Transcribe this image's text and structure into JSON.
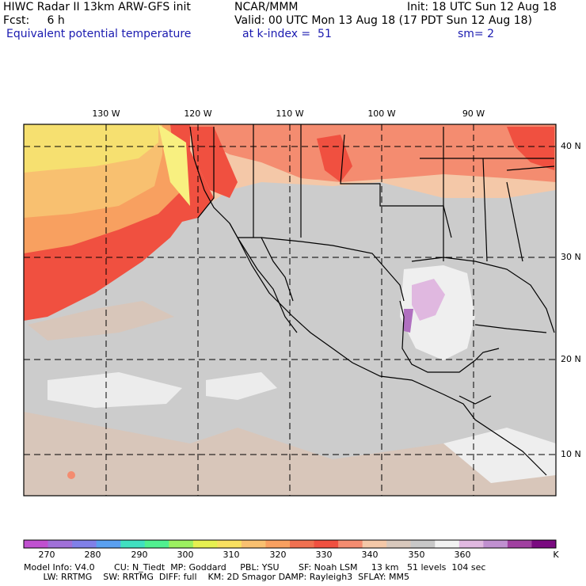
{
  "header": {
    "line1_left": "HIWC Radar II 13km ARW-GFS init",
    "line1_mid": "NCAR/MMM",
    "line1_right": "Init: 18 UTC Sun 12 Aug 18",
    "line2_left": "Fcst:     6 h",
    "line2_right": "Valid: 00 UTC Mon 13 Aug 18 (17 PDT Sun 12 Aug 18)",
    "line3_left": "Equivalent potential temperature",
    "line3_mid": "at k-index =  51",
    "line3_right": "sm= 2"
  },
  "axes": {
    "longitudes": [
      "130 W",
      "120 W",
      "110 W",
      "100 W",
      "90 W"
    ],
    "latitudes": [
      "40 N",
      "30 N",
      "20 N",
      "10 N"
    ]
  },
  "colorbar": {
    "unit": "K",
    "labels": [
      "270",
      "280",
      "290",
      "300",
      "310",
      "320",
      "330",
      "340",
      "350",
      "360"
    ],
    "colors": [
      "#c050d0",
      "#a070d8",
      "#8080e8",
      "#5aa0f0",
      "#40e0c0",
      "#50f090",
      "#9cf060",
      "#e6f050",
      "#f8e060",
      "#f8c070",
      "#f8a060",
      "#f07050",
      "#f05040",
      "#f48c70",
      "#f4c8a8",
      "#d8c8bc",
      "#c8c8c8",
      "#f2f2f2",
      "#e0b8e0",
      "#c090d0",
      "#a040a0",
      "#7a0a80"
    ]
  },
  "footer": {
    "line1": "Model Info: V4.0       CU: N_Tiedt  MP: Goddard     PBL: YSU       SF: Noah LSM     13 km   51 levels  104 sec",
    "line2": "       LW: RRTMG    SW: RRTMG  DIFF: full    KM: 2D Smagor DAMP: Rayleigh3  SFLAY: MM5"
  }
}
